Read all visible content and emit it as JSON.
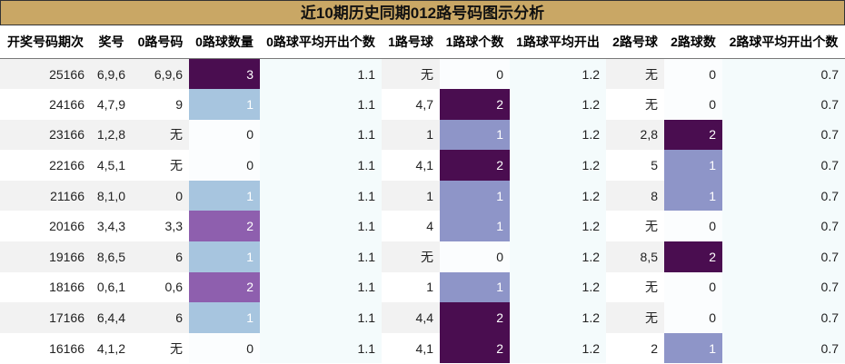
{
  "title": "近10期历史同期012路号码图示分析",
  "table": {
    "header": [
      "开奖号码期次",
      "奖号",
      "0路号码",
      "0路球数量",
      "0路球平均开出个数",
      "1路号球",
      "1路球个数",
      "1路球平均开出",
      "2路号球",
      "2路球数",
      "2路球平均开出个数"
    ],
    "rows": [
      [
        "25166",
        "6,9,6",
        "6,9,6",
        "3",
        "1.1",
        "无",
        "0",
        "1.2",
        "无",
        "0",
        "0.7"
      ],
      [
        "24166",
        "4,7,9",
        "9",
        "1",
        "1.1",
        "4,7",
        "2",
        "1.2",
        "无",
        "0",
        "0.7"
      ],
      [
        "23166",
        "1,2,8",
        "无",
        "0",
        "1.1",
        "1",
        "1",
        "1.2",
        "2,8",
        "2",
        "0.7"
      ],
      [
        "22166",
        "4,5,1",
        "无",
        "0",
        "1.1",
        "4,1",
        "2",
        "1.2",
        "5",
        "1",
        "0.7"
      ],
      [
        "21166",
        "8,1,0",
        "0",
        "1",
        "1.1",
        "1",
        "1",
        "1.2",
        "8",
        "1",
        "0.7"
      ],
      [
        "20166",
        "3,4,3",
        "3,3",
        "2",
        "1.1",
        "4",
        "1",
        "1.2",
        "无",
        "0",
        "0.7"
      ],
      [
        "19166",
        "8,6,5",
        "6",
        "1",
        "1.1",
        "无",
        "0",
        "1.2",
        "8,5",
        "2",
        "0.7"
      ],
      [
        "18166",
        "0,6,1",
        "0,6",
        "2",
        "1.1",
        "1",
        "1",
        "1.2",
        "无",
        "0",
        "0.7"
      ],
      [
        "17166",
        "6,4,4",
        "6",
        "1",
        "1.1",
        "4,4",
        "2",
        "1.2",
        "无",
        "0",
        "0.7"
      ],
      [
        "16166",
        "4,1,2",
        "无",
        "0",
        "1.1",
        "4,1",
        "2",
        "1.2",
        "2",
        "1",
        "0.7"
      ]
    ]
  }
}
